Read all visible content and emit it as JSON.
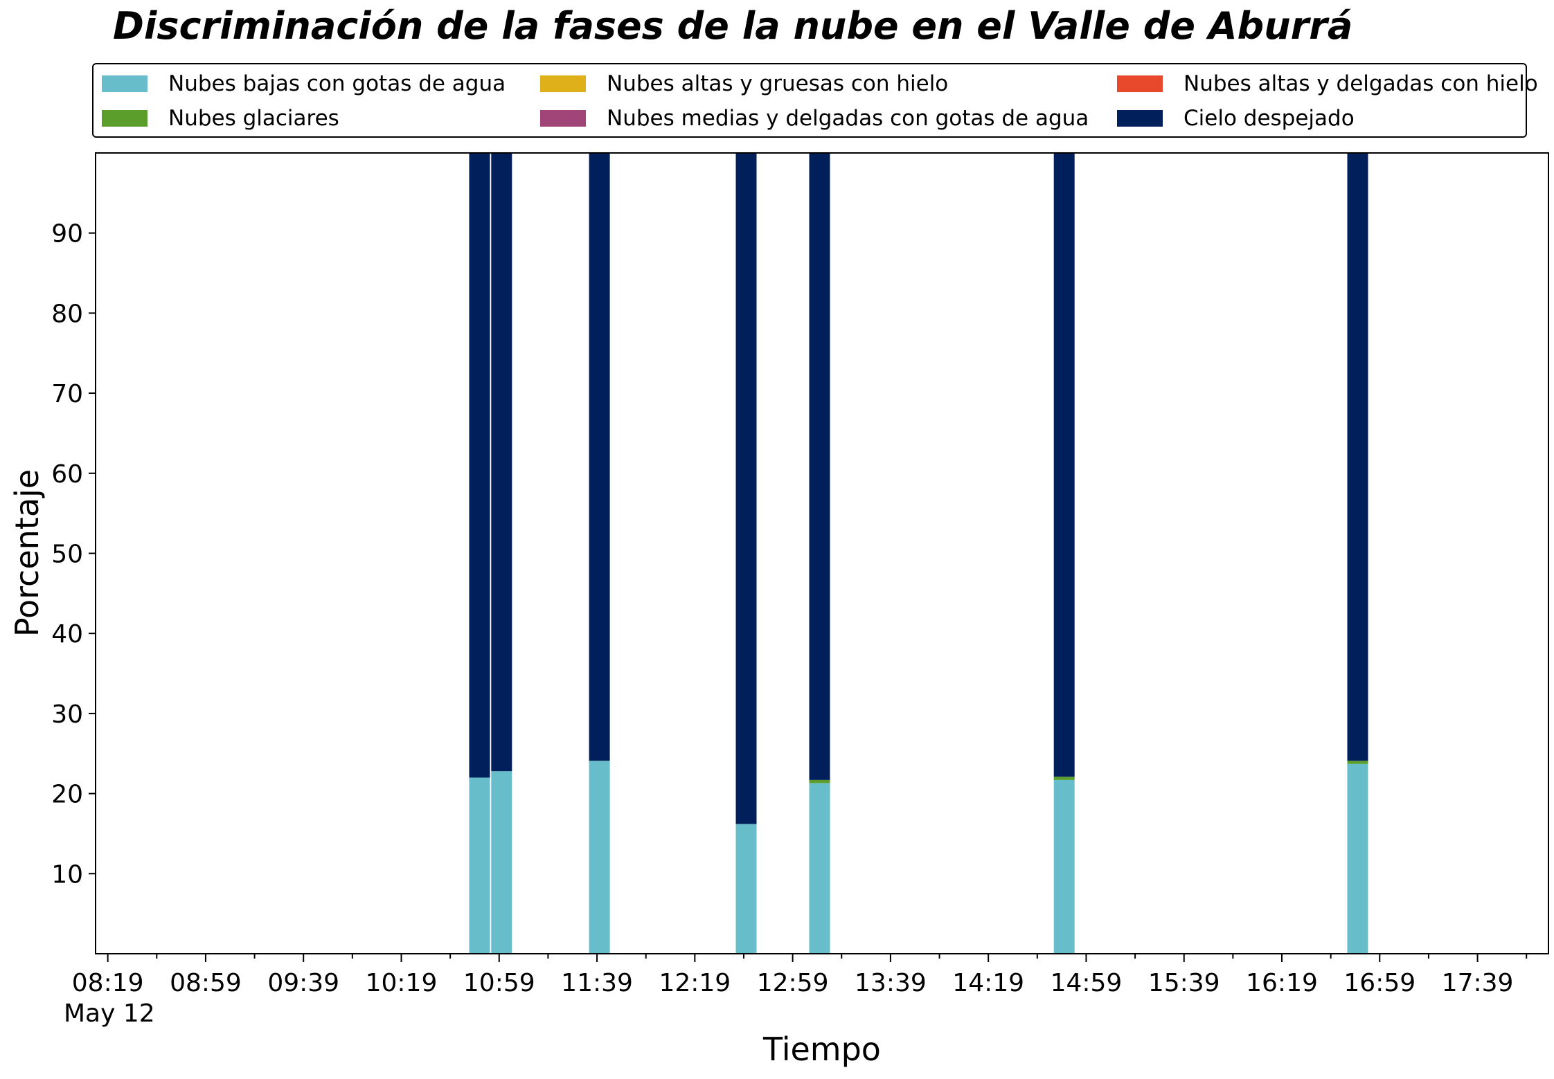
{
  "chart_data": {
    "type": "bar",
    "stacked": true,
    "title": "Discriminación de la fases de la nube en el Valle de Aburrá",
    "xlabel": "Tiempo",
    "ylabel": "Porcentaje",
    "date_label": "May 12",
    "ylim": [
      0,
      100
    ],
    "yticks": [
      10,
      20,
      30,
      40,
      50,
      60,
      70,
      80,
      90
    ],
    "xlim": [
      "08:14",
      "18:08"
    ],
    "xticks": [
      "08:19",
      "08:59",
      "09:39",
      "10:19",
      "10:59",
      "11:39",
      "12:19",
      "12:59",
      "13:39",
      "14:19",
      "14:59",
      "15:39",
      "16:19",
      "16:59",
      "17:39"
    ],
    "grid": false,
    "legend_position": "top",
    "x": [
      "10:51",
      "11:00",
      "11:40",
      "12:40",
      "13:10",
      "14:50",
      "16:50"
    ],
    "series": [
      {
        "name": "Nubes bajas con gotas de agua",
        "color": "#67bdca",
        "values": [
          22.0,
          22.8,
          24.1,
          16.2,
          21.3,
          21.7,
          23.7
        ]
      },
      {
        "name": "Nubes glaciares",
        "color": "#5c9e2c",
        "values": [
          0,
          0,
          0,
          0,
          0.4,
          0.4,
          0.4
        ]
      },
      {
        "name": "Nubes altas y gruesas con hielo",
        "color": "#e0b01b",
        "values": [
          0,
          0,
          0,
          0,
          0,
          0,
          0
        ]
      },
      {
        "name": "Nubes medias y delgadas con gotas de agua",
        "color": "#a14477",
        "values": [
          0,
          0,
          0,
          0,
          0,
          0,
          0
        ]
      },
      {
        "name": "Nubes altas y delgadas con hielo",
        "color": "#e8482b",
        "values": [
          0,
          0,
          0,
          0,
          0,
          0,
          0
        ]
      },
      {
        "name": "Cielo despejado",
        "color": "#001f5b",
        "values": [
          78.0,
          77.2,
          75.9,
          83.8,
          78.3,
          77.9,
          75.9
        ]
      }
    ]
  }
}
